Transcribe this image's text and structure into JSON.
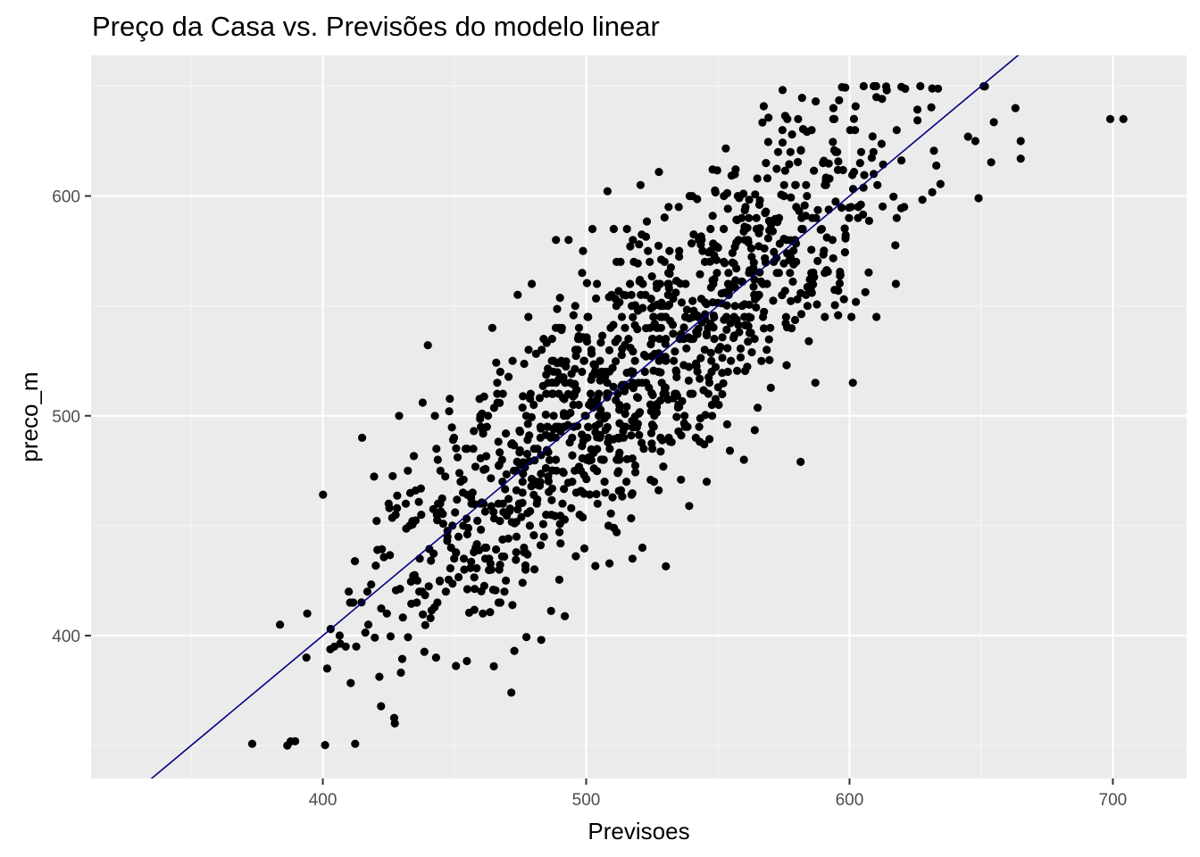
{
  "chart_data": {
    "type": "scatter",
    "title": "Preço da Casa vs. Previsões do modelo linear",
    "xlabel": "Previsoes",
    "ylabel": "preco_m",
    "xlim": [
      312,
      728
    ],
    "ylim": [
      335,
      664
    ],
    "x_ticks": [
      400,
      500,
      600,
      700
    ],
    "y_ticks": [
      400,
      500,
      600
    ],
    "x_tick_labels": [
      "400",
      "500",
      "600",
      "700"
    ],
    "y_tick_labels": [
      "400",
      "500",
      "600"
    ],
    "grid": true,
    "legend": "none",
    "colors": {
      "panel_background": "#ebebeb",
      "grid_major": "#ffffff",
      "grid_minor": "#f5f5f5",
      "points": "#000000",
      "fit_line": "#000080",
      "tick_label": "#4d4d4d",
      "tick_mark": "#333333"
    },
    "fit_line": {
      "slope": 1.0,
      "intercept": 0.0
    },
    "n_points": 1250,
    "x_range": [
      333,
      704
    ],
    "y_range": [
      350,
      650
    ],
    "noise_sd": 32,
    "random_seed": 20240511
  }
}
